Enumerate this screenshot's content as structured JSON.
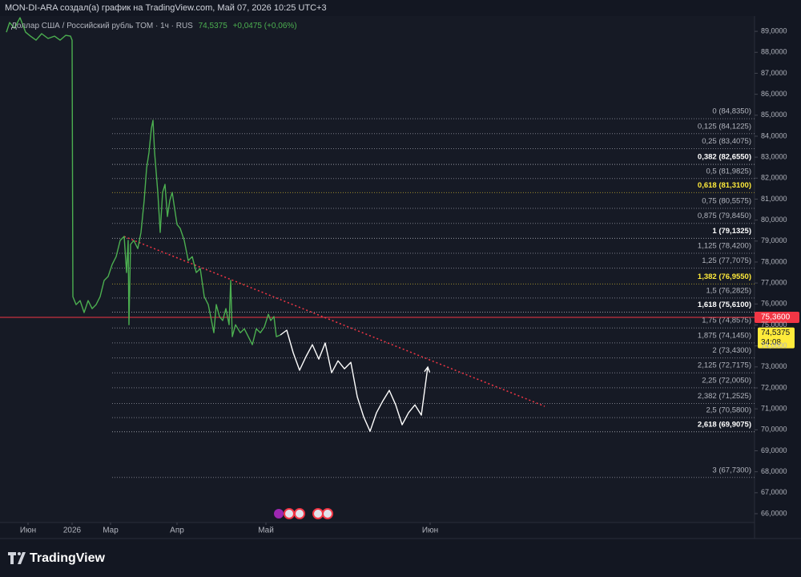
{
  "header": {
    "text": "MON-DI-ARA создал(а) график на TradingView.com, Май 07, 2026 10:25 UTC+3"
  },
  "chart_data": {
    "type": "line",
    "title": "Доллар США / Российский рубль TOM · 1ч · RUS",
    "last_price": 74.5375,
    "last_price_label": "74,5375",
    "change_label": "+0,0475 (+0,06%)",
    "countdown": "34:08",
    "xlim": [
      0,
      471
    ],
    "ylim": [
      65.58,
      89.73
    ],
    "xticks": [
      {
        "value": 17.5,
        "label": "Июн"
      },
      {
        "value": 45,
        "label": "2026"
      },
      {
        "value": 69,
        "label": "Мар"
      },
      {
        "value": 110.5,
        "label": "Апр"
      },
      {
        "value": 166,
        "label": "Май"
      },
      {
        "value": 268.5,
        "label": "Июн"
      }
    ],
    "yticks": [
      {
        "value": 66,
        "label": "66,0000"
      },
      {
        "value": 67,
        "label": "67,0000"
      },
      {
        "value": 68,
        "label": "68,0000"
      },
      {
        "value": 69,
        "label": "69,0000"
      },
      {
        "value": 70,
        "label": "70,0000"
      },
      {
        "value": 71,
        "label": "71,0000"
      },
      {
        "value": 72,
        "label": "72,0000"
      },
      {
        "value": 73,
        "label": "73,0000"
      },
      {
        "value": 74,
        "label": "74,0000"
      },
      {
        "value": 75,
        "label": "75,0000"
      },
      {
        "value": 76,
        "label": "76,0000"
      },
      {
        "value": 77,
        "label": "77,0000"
      },
      {
        "value": 78,
        "label": "78,0000"
      },
      {
        "value": 79,
        "label": "79,0000"
      },
      {
        "value": 80,
        "label": "80,0000"
      },
      {
        "value": 81,
        "label": "81,0000"
      },
      {
        "value": 82,
        "label": "82,0000"
      },
      {
        "value": 83,
        "label": "83,0000"
      },
      {
        "value": 84,
        "label": "84,0000"
      },
      {
        "value": 85,
        "label": "85,0000"
      },
      {
        "value": 86,
        "label": "86,0000"
      },
      {
        "value": 87,
        "label": "87,0000"
      },
      {
        "value": 88,
        "label": "88,0000"
      },
      {
        "value": 89,
        "label": "89,0000"
      }
    ],
    "series": [
      {
        "color": "#4caf50",
        "x": [
          4,
          6,
          9,
          12.5,
          16,
          19,
          22.5,
          26,
          30,
          34,
          37.5,
          41,
          44,
          45,
          45.5,
          47.5,
          50,
          52.5,
          55,
          57.5,
          60,
          62.5,
          65,
          67.5,
          70,
          72.5,
          75,
          77.5,
          79,
          80,
          80.5,
          81.5,
          83.5,
          86,
          88,
          90,
          91.5,
          93,
          94.5,
          95.5,
          96.5,
          98.5,
          100,
          101.5,
          103,
          104.5,
          106,
          107.5,
          109,
          110.5,
          112.5,
          115,
          117.5,
          120,
          122.5,
          125,
          127.5,
          130,
          132,
          133.5,
          135,
          137,
          139,
          141,
          143,
          144,
          145,
          147,
          150,
          152.5,
          155,
          157.5,
          160,
          162.5,
          165,
          167.5,
          169,
          171,
          172.5,
          175
        ],
        "values": [
          88.96,
          89.42,
          89.15,
          89.65,
          88.96,
          88.77,
          88.58,
          88.89,
          88.66,
          88.77,
          88.58,
          88.81,
          88.77,
          88.58,
          76.35,
          75.97,
          76.16,
          75.59,
          76.16,
          75.78,
          75.97,
          76.35,
          77.12,
          77.31,
          77.88,
          78.26,
          79.03,
          79.22,
          77.5,
          79.03,
          75.01,
          78.84,
          79.03,
          78.64,
          79.41,
          80.94,
          82.47,
          83.23,
          84.38,
          84.76,
          83.23,
          81.32,
          79.41,
          81.32,
          81.7,
          80.17,
          80.94,
          81.32,
          80.55,
          79.79,
          79.6,
          79.03,
          78.07,
          78.26,
          77.5,
          77.69,
          76.35,
          75.97,
          75.21,
          74.63,
          75.97,
          75.4,
          75.21,
          75.78,
          75.01,
          77.12,
          74.44,
          75.01,
          74.63,
          74.82,
          74.44,
          74.06,
          74.82,
          74.63,
          74.9,
          75.51,
          75.21,
          75.4,
          74.44,
          74.52
        ]
      },
      {
        "color": "#ffffff",
        "arrow": true,
        "x": [
          175,
          179,
          183,
          187,
          191,
          195,
          199,
          203,
          207,
          211,
          215,
          219,
          223,
          227,
          231,
          235,
          239,
          243,
          247,
          251,
          255,
          259,
          263,
          267
        ],
        "values": [
          74.52,
          74.75,
          73.68,
          72.84,
          73.49,
          74.06,
          73.37,
          74.14,
          72.72,
          73.29,
          72.91,
          73.22,
          71.58,
          70.62,
          69.93,
          70.81,
          71.38,
          71.88,
          71.19,
          70.24,
          70.81,
          71.19,
          70.7,
          72.99
        ]
      }
    ],
    "trend_line": {
      "color": "#f23645",
      "x": [
        77.5,
        340
      ],
      "values": [
        79.22,
        71.12
      ]
    },
    "price_line": {
      "value": 75.36,
      "label": "75,3600",
      "color": "#f23645"
    },
    "fib": {
      "x_start": 70,
      "levels": [
        {
          "price": 84.835,
          "label": "0 (84,8350)"
        },
        {
          "price": 84.1225,
          "label": "0,125 (84,1225)"
        },
        {
          "price": 83.4075,
          "label": "0,25 (83,4075)"
        },
        {
          "price": 82.655,
          "label": "0,382 (82,6550)",
          "style": "bold"
        },
        {
          "price": 81.9825,
          "label": "0,5 (81,9825)"
        },
        {
          "price": 81.31,
          "label": "0,618 (81,3100)",
          "style": "yellow"
        },
        {
          "price": 80.5575,
          "label": "0,75 (80,5575)"
        },
        {
          "price": 79.845,
          "label": "0,875 (79,8450)"
        },
        {
          "price": 79.1325,
          "label": "1 (79,1325)",
          "style": "bold"
        },
        {
          "price": 78.42,
          "label": "1,125 (78,4200)"
        },
        {
          "price": 77.7075,
          "label": "1,25 (77,7075)"
        },
        {
          "price": 76.955,
          "label": "1,382 (76,9550)",
          "style": "yellow"
        },
        {
          "price": 76.2825,
          "label": "1,5 (76,2825)"
        },
        {
          "price": 75.61,
          "label": "1,618 (75,6100)",
          "style": "bold"
        },
        {
          "price": 74.8575,
          "label": "1,75 (74,8575)"
        },
        {
          "price": 74.145,
          "label": "1,875 (74,1450)"
        },
        {
          "price": 73.43,
          "label": "2 (73,4300)"
        },
        {
          "price": 72.7175,
          "label": "2,125 (72,7175)"
        },
        {
          "price": 72.005,
          "label": "2,25 (72,0050)"
        },
        {
          "price": 71.2525,
          "label": "2,382 (71,2525)"
        },
        {
          "price": 70.58,
          "label": "2,5 (70,5800)"
        },
        {
          "price": 69.9075,
          "label": "2,618 (69,9075)",
          "style": "bold"
        },
        {
          "price": 67.73,
          "label": "3 (67,7300)"
        }
      ]
    }
  },
  "footer": {
    "brand": "TradingView"
  }
}
